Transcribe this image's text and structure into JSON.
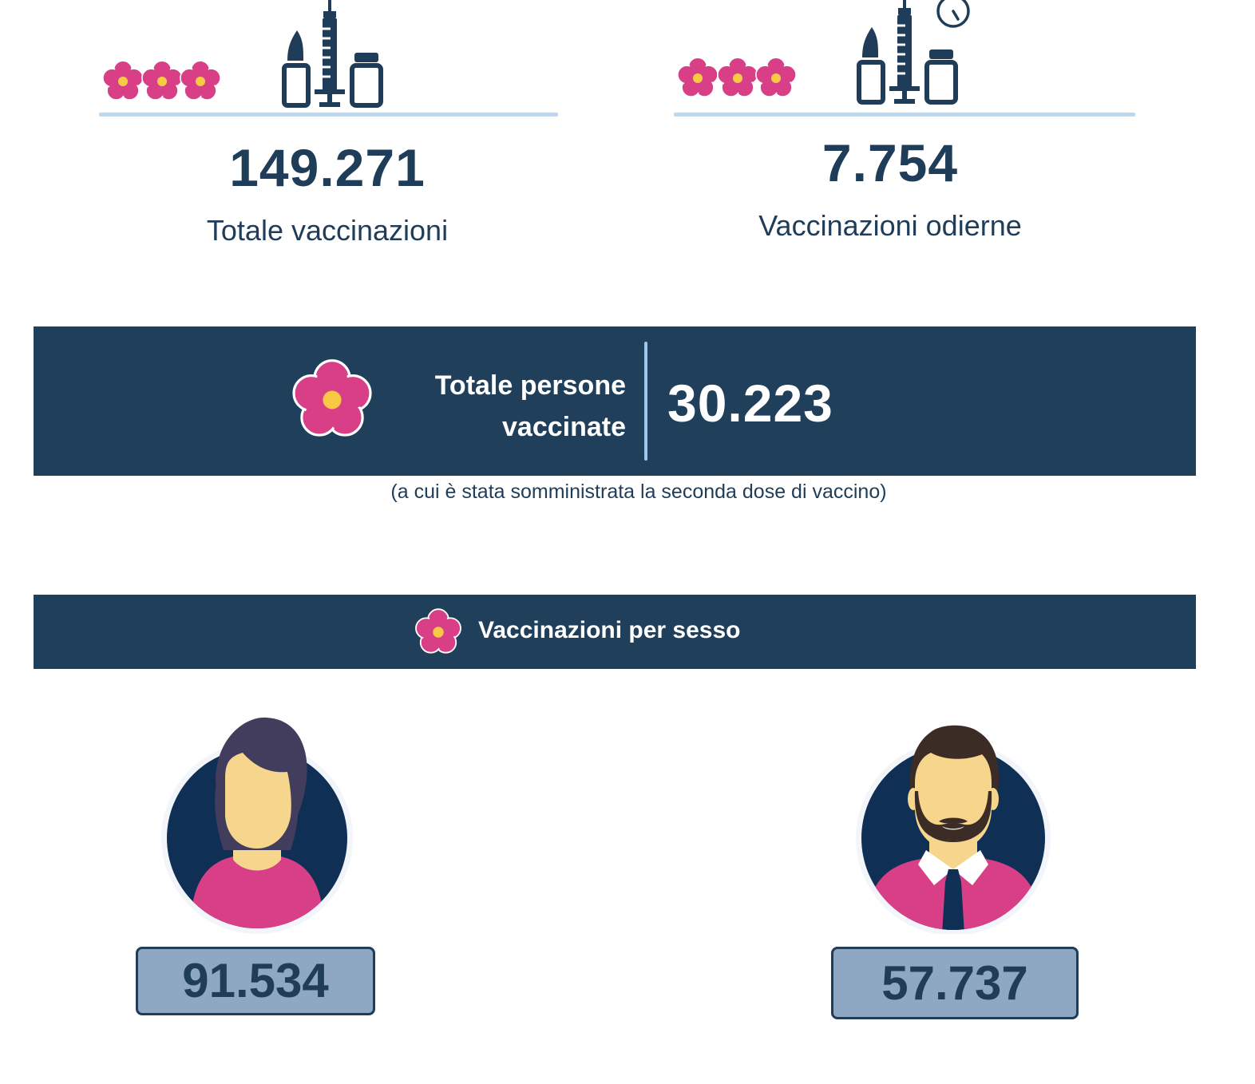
{
  "stats": {
    "total": {
      "value": "149.271",
      "label": "Totale vaccinazioni"
    },
    "today": {
      "value": "7.754",
      "label": "Vaccinazioni odierne"
    }
  },
  "persons": {
    "title_line1": "Totale persone",
    "title_line2": "vaccinate",
    "value": "30.223",
    "note": "(a cui è stata somministrata la seconda dose di vaccino)"
  },
  "sex_section": {
    "title": "Vaccinazioni per sesso",
    "female": {
      "value": "91.534",
      "icon": "woman-avatar-icon"
    },
    "male": {
      "value": "57.737",
      "icon": "man-avatar-icon"
    }
  },
  "colors": {
    "navy": "#1f3f5b",
    "flower_pink": "#d83f87",
    "flower_center": "#f7c945",
    "rule_blue": "#b8d8f4",
    "box_fill": "#8ea7c3"
  },
  "icons": [
    "flower-icon",
    "vaccine-vial-icon",
    "syringe-icon",
    "stopwatch-icon"
  ]
}
